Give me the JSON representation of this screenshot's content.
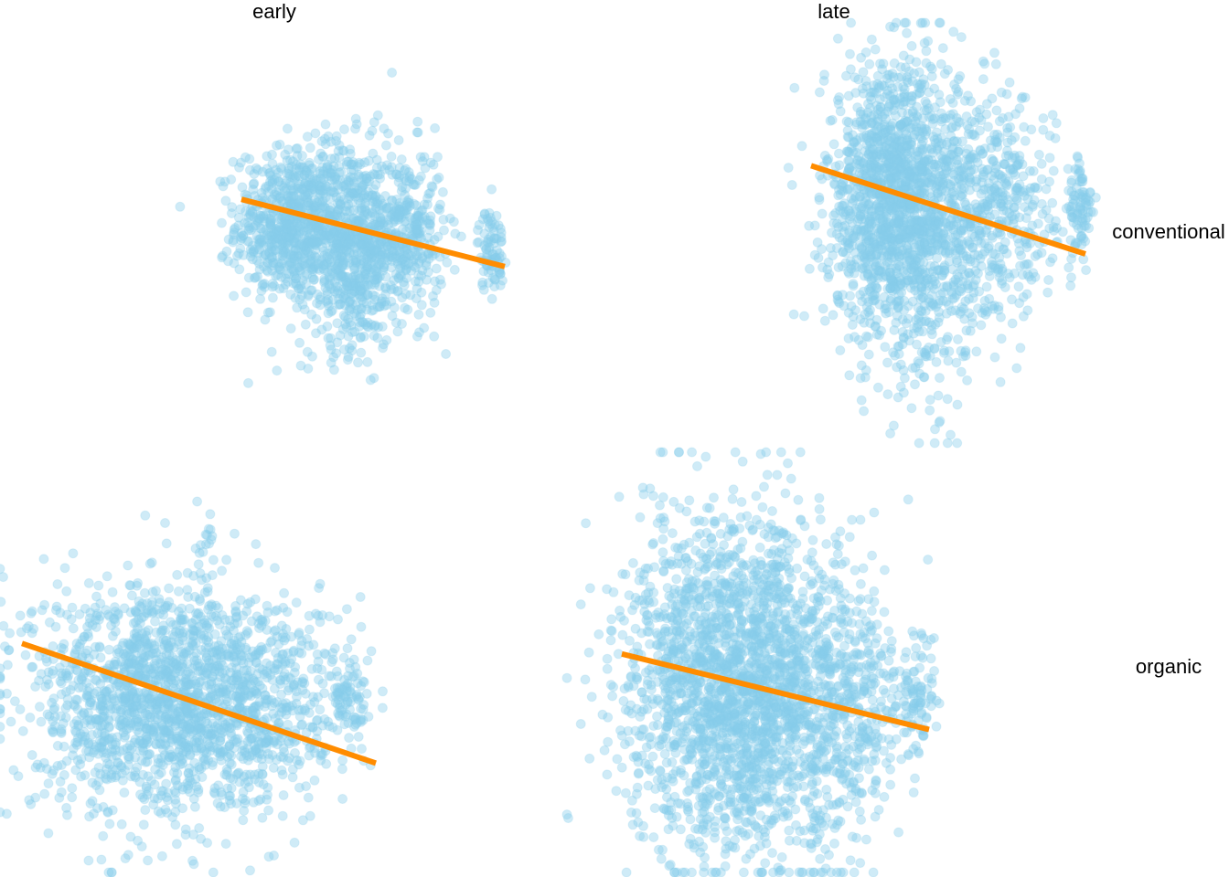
{
  "chart_data": {
    "type": "scatter",
    "facet_columns": [
      "early",
      "late"
    ],
    "facet_rows": [
      "conventional",
      "organic"
    ],
    "x_range": [
      0,
      1
    ],
    "y_range": [
      0,
      1
    ],
    "axes_shown": false,
    "grid": false,
    "legend": "none",
    "point_color": "#87ceeb",
    "point_opacity": 0.4,
    "fit_line_color": "#ff8c00",
    "panels": [
      {
        "column": "early",
        "row": "conventional",
        "trend": {
          "x": [
            0.44,
            0.92
          ],
          "y": [
            0.58,
            0.42
          ]
        },
        "clusters": [
          {
            "cx": 0.53,
            "cy": 0.52,
            "sx": 0.05,
            "sy": 0.09,
            "n": 700
          },
          {
            "cx": 0.64,
            "cy": 0.47,
            "sx": 0.045,
            "sy": 0.12,
            "n": 700
          },
          {
            "cx": 0.74,
            "cy": 0.5,
            "sx": 0.035,
            "sy": 0.1,
            "n": 350
          },
          {
            "cx": 0.895,
            "cy": 0.46,
            "sx": 0.012,
            "sy": 0.05,
            "n": 90
          }
        ]
      },
      {
        "column": "late",
        "row": "conventional",
        "trend": {
          "x": [
            0.445,
            0.945
          ],
          "y": [
            0.66,
            0.45
          ]
        },
        "clusters": [
          {
            "cx": 0.58,
            "cy": 0.58,
            "sx": 0.055,
            "sy": 0.16,
            "n": 1100
          },
          {
            "cx": 0.66,
            "cy": 0.52,
            "sx": 0.05,
            "sy": 0.18,
            "n": 700
          },
          {
            "cx": 0.79,
            "cy": 0.55,
            "sx": 0.05,
            "sy": 0.13,
            "n": 400
          },
          {
            "cx": 0.935,
            "cy": 0.55,
            "sx": 0.012,
            "sy": 0.07,
            "n": 90
          }
        ]
      },
      {
        "column": "early",
        "row": "organic",
        "trend": {
          "x": [
            0.04,
            0.685
          ],
          "y": [
            0.545,
            0.26
          ]
        },
        "clusters": [
          {
            "cx": 0.28,
            "cy": 0.42,
            "sx": 0.11,
            "sy": 0.14,
            "n": 1500
          },
          {
            "cx": 0.47,
            "cy": 0.4,
            "sx": 0.08,
            "sy": 0.12,
            "n": 500
          },
          {
            "cx": 0.64,
            "cy": 0.4,
            "sx": 0.018,
            "sy": 0.06,
            "n": 90
          },
          {
            "cx": 0.38,
            "cy": 0.8,
            "sx": 0.005,
            "sy": 0.02,
            "n": 10
          }
        ]
      },
      {
        "column": "late",
        "row": "organic",
        "trend": {
          "x": [
            0.1,
            0.66
          ],
          "y": [
            0.52,
            0.34
          ]
        },
        "clusters": [
          {
            "cx": 0.28,
            "cy": 0.45,
            "sx": 0.09,
            "sy": 0.2,
            "n": 1600
          },
          {
            "cx": 0.4,
            "cy": 0.42,
            "sx": 0.08,
            "sy": 0.19,
            "n": 800
          },
          {
            "cx": 0.52,
            "cy": 0.4,
            "sx": 0.05,
            "sy": 0.14,
            "n": 300
          },
          {
            "cx": 0.64,
            "cy": 0.42,
            "sx": 0.02,
            "sy": 0.07,
            "n": 90
          }
        ]
      }
    ]
  }
}
